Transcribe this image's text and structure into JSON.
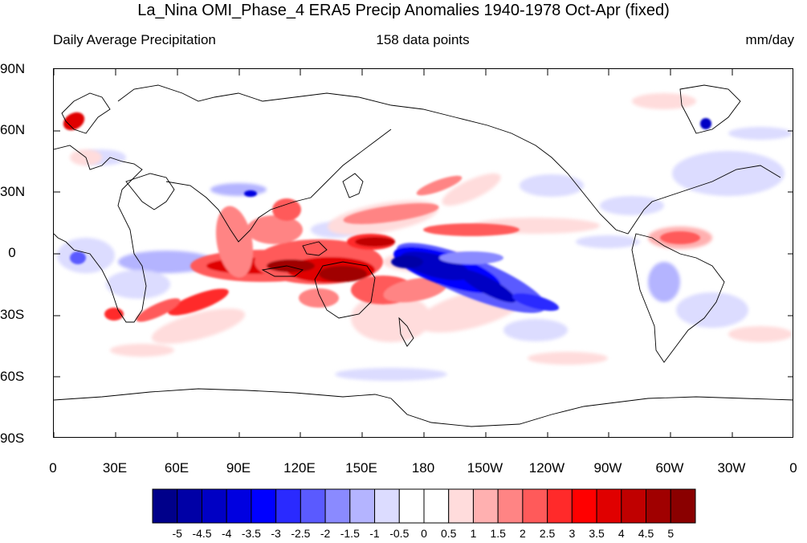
{
  "title": "La_Nina OMI_Phase_4 ERA5 Precip Anomalies 1940-1978 Oct-Apr (fixed)",
  "subtitle_left": "Daily Average Precipitation",
  "subtitle_center": "158 data points",
  "subtitle_right": "mm/day",
  "lat_labels": [
    "90N",
    "60N",
    "30N",
    "0",
    "30S",
    "60S",
    "90S"
  ],
  "lon_labels": [
    "0",
    "30E",
    "60E",
    "90E",
    "120E",
    "150E",
    "180",
    "150W",
    "120W",
    "90W",
    "60W",
    "30W",
    "0"
  ],
  "colorbar": {
    "labels": [
      "-5",
      "-4.5",
      "-4",
      "-3.5",
      "-3",
      "-2.5",
      "-2",
      "-1.5",
      "-1",
      "-0.5",
      "0",
      "0.5",
      "1",
      "1.5",
      "2",
      "2.5",
      "3",
      "3.5",
      "4",
      "4.5",
      "5"
    ],
    "colors": [
      "#00008a",
      "#0000a6",
      "#0000c4",
      "#0000e0",
      "#0000ff",
      "#2a2aff",
      "#5a5aff",
      "#8a8aff",
      "#b4b4ff",
      "#dcdcff",
      "#ffffff",
      "#ffffff",
      "#ffdcdc",
      "#ffb0b0",
      "#ff8484",
      "#ff5a5a",
      "#ff2a2a",
      "#ff0000",
      "#e00000",
      "#c00000",
      "#a00000",
      "#8a0000"
    ]
  }
}
